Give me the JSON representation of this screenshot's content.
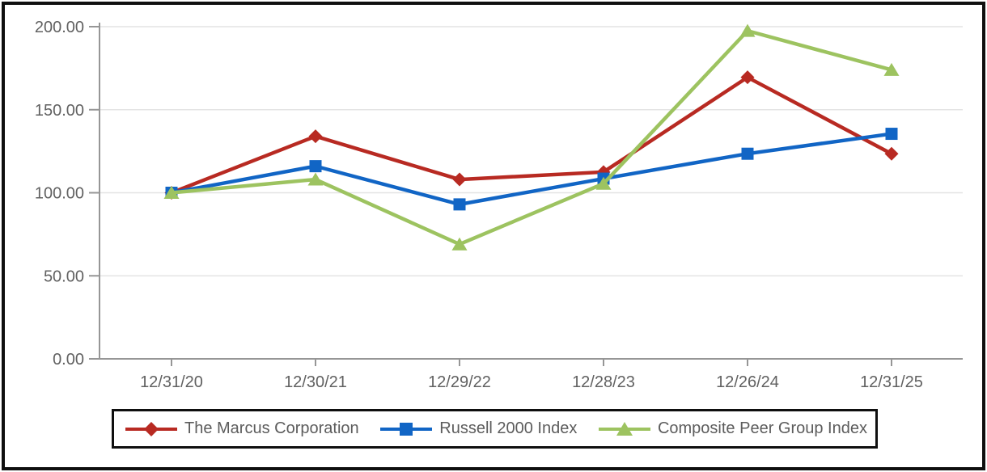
{
  "chart_data": {
    "type": "line",
    "title": "",
    "xlabel": "",
    "ylabel": "",
    "x_categories": [
      "12/31/20",
      "12/30/21",
      "12/29/22",
      "12/28/23",
      "12/26/24",
      "12/31/25"
    ],
    "series": [
      {
        "name": "The Marcus Corporation",
        "marker": "diamond",
        "color": "#b82a22",
        "values": [
          100.0,
          134.0,
          108.0,
          112.5,
          169.5,
          123.5
        ]
      },
      {
        "name": "Russell 2000 Index",
        "marker": "square",
        "color": "#1165c5",
        "values": [
          100.0,
          116.0,
          93.0,
          108.5,
          123.5,
          135.5
        ]
      },
      {
        "name": "Composite Peer Group Index",
        "marker": "triangle",
        "color": "#9dc360",
        "values": [
          100.0,
          108.0,
          69.0,
          105.5,
          197.5,
          174.0
        ]
      }
    ],
    "ylim": [
      0,
      200
    ],
    "y_tick_values": [
      0,
      50,
      100,
      150,
      200
    ],
    "y_tick_labels": [
      "0.00",
      "50.00",
      "100.00",
      "150.00",
      "200.00"
    ],
    "grid": true,
    "legend_position": "bottom"
  },
  "colors": {
    "background": "#ffffff",
    "frame_border": "#0f0f0f",
    "gridline": "#e4e4e4",
    "axis": "#969696",
    "tick_text": "#616161",
    "legend_text": "#5c5c5c"
  }
}
